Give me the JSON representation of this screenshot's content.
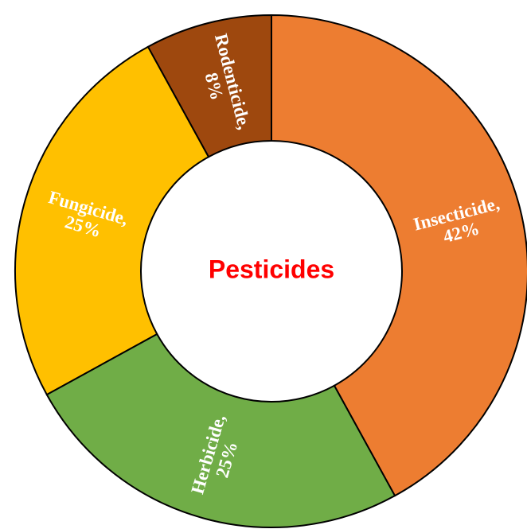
{
  "chart_data": {
    "type": "donut",
    "title": "Pesticides",
    "categories": [
      "Insecticide,",
      "Herbicide,",
      "Fungicide,",
      "Rodenticide,"
    ],
    "values": [
      42,
      25,
      25,
      8
    ],
    "value_labels": [
      "42%",
      "25%",
      "25%",
      "8%"
    ],
    "colors": [
      "#ED7D31",
      "#70AD47",
      "#FFC000",
      "#9E480E"
    ]
  }
}
